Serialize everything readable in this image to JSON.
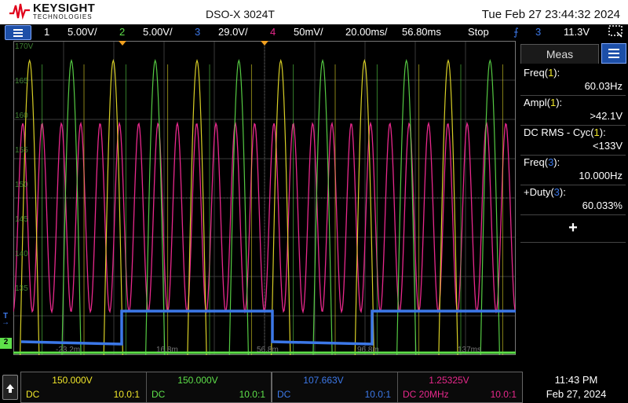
{
  "header": {
    "brand": "KEYSIGHT",
    "brand_sub": "TECHNOLOGIES",
    "model": "DSO-X  3024T",
    "datetime": "Tue Feb 27 23:44:32 2024"
  },
  "status": {
    "ch1_num": "1",
    "ch1_scale": "5.00V/",
    "ch2_num": "2",
    "ch2_scale": "5.00V/",
    "ch3_num": "3",
    "ch3_scale": "29.0V/",
    "ch4_num": "4",
    "ch4_scale": "50mV/",
    "timebase": "20.00ms/",
    "delay": "56.80ms",
    "run_state": "Stop",
    "trigger_src": "3",
    "trigger_level": "11.3V"
  },
  "grid": {
    "left_labels": [
      "170V",
      "165",
      "160",
      "155",
      "150",
      "145",
      "140",
      "135"
    ],
    "bottom_labels": [
      "-23.2m",
      "16.8m",
      "56.8m",
      "96.8m",
      "137ms"
    ]
  },
  "colors": {
    "ch1": "#f0e62a",
    "ch2": "#5ee04a",
    "ch3": "#3c78e8",
    "ch4": "#e8288c"
  },
  "measurements": {
    "tab": "Meas",
    "items": [
      {
        "label": "Freq(1):",
        "value": "60.03Hz",
        "ch": "1"
      },
      {
        "label": "Ampl(1):",
        "value": ">42.1V",
        "ch": "1"
      },
      {
        "label": "DC RMS - Cyc(1):",
        "value": "<133V",
        "ch": "1"
      },
      {
        "label": "Freq(3):",
        "value": "10.000Hz",
        "ch": "3"
      },
      {
        "label": "+Duty(3):",
        "value": "60.033%",
        "ch": "3"
      }
    ],
    "add_label": "+"
  },
  "channels": [
    {
      "offset": "150.000V",
      "coupling": "DC",
      "probe": "10.0:1"
    },
    {
      "offset": "150.000V",
      "coupling": "DC",
      "probe": "10.0:1"
    },
    {
      "offset": "107.663V",
      "coupling": "DC",
      "probe": "10.0:1"
    },
    {
      "offset": "1.25325V",
      "coupling": "DC 20MHz",
      "probe": "10.0:1"
    }
  ],
  "clock": {
    "time": "11:43 PM",
    "date": "Feb 27, 2024"
  }
}
